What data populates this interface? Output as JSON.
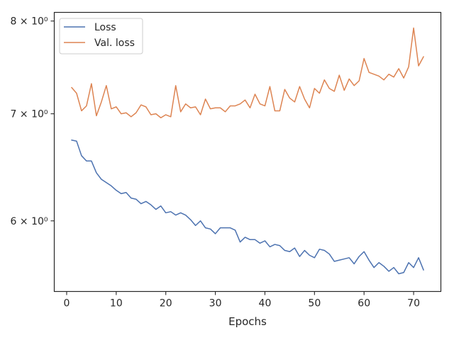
{
  "chart_data": {
    "type": "line",
    "title": "",
    "xlabel": "Epochs",
    "ylabel": "",
    "yscale": "log",
    "xlim": [
      -2.5,
      75.5
    ],
    "ylim": [
      5.42,
      8.1
    ],
    "grid": false,
    "legend_position": "top-left",
    "x_ticks": [
      0,
      10,
      20,
      30,
      40,
      50,
      60,
      70
    ],
    "x_tick_labels": [
      "0",
      "10",
      "20",
      "30",
      "40",
      "50",
      "60",
      "70"
    ],
    "y_ticks": [
      6,
      7,
      8
    ],
    "y_tick_labels": [
      "6 × 10⁰",
      "7 × 10⁰",
      "8 × 10⁰"
    ],
    "x": [
      1,
      2,
      3,
      4,
      5,
      6,
      7,
      8,
      9,
      10,
      11,
      12,
      13,
      14,
      15,
      16,
      17,
      18,
      19,
      20,
      21,
      22,
      23,
      24,
      25,
      26,
      27,
      28,
      29,
      30,
      31,
      32,
      33,
      34,
      35,
      36,
      37,
      38,
      39,
      40,
      41,
      42,
      43,
      44,
      45,
      46,
      47,
      48,
      49,
      50,
      51,
      52,
      53,
      54,
      55,
      56,
      57,
      58,
      59,
      60,
      61,
      62,
      63,
      64,
      65,
      66,
      67,
      68,
      69,
      70,
      71,
      72
    ],
    "series": [
      {
        "name": "Loss",
        "color": "#4c72b0",
        "values": [
          6.74,
          6.73,
          6.59,
          6.54,
          6.54,
          6.43,
          6.37,
          6.34,
          6.31,
          6.27,
          6.24,
          6.25,
          6.2,
          6.19,
          6.15,
          6.17,
          6.14,
          6.1,
          6.13,
          6.07,
          6.08,
          6.05,
          6.07,
          6.05,
          6.01,
          5.96,
          6.0,
          5.94,
          5.93,
          5.89,
          5.94,
          5.94,
          5.94,
          5.92,
          5.82,
          5.86,
          5.84,
          5.84,
          5.81,
          5.83,
          5.78,
          5.8,
          5.79,
          5.75,
          5.74,
          5.77,
          5.7,
          5.75,
          5.71,
          5.69,
          5.76,
          5.75,
          5.72,
          5.66,
          5.67,
          5.68,
          5.69,
          5.64,
          5.7,
          5.74,
          5.67,
          5.61,
          5.65,
          5.62,
          5.58,
          5.61,
          5.56,
          5.57,
          5.65,
          5.61,
          5.69,
          5.59
        ]
      },
      {
        "name": "Val. loss",
        "color": "#dd8452",
        "values": [
          7.27,
          7.21,
          7.03,
          7.08,
          7.31,
          6.98,
          7.12,
          7.29,
          7.05,
          7.07,
          7.0,
          7.01,
          6.97,
          7.01,
          7.09,
          7.07,
          6.99,
          7.0,
          6.96,
          6.99,
          6.97,
          7.29,
          7.02,
          7.1,
          7.06,
          7.07,
          6.99,
          7.15,
          7.05,
          7.06,
          7.06,
          7.02,
          7.08,
          7.08,
          7.1,
          7.14,
          7.06,
          7.2,
          7.1,
          7.08,
          7.28,
          7.03,
          7.03,
          7.25,
          7.16,
          7.12,
          7.28,
          7.15,
          7.06,
          7.26,
          7.21,
          7.35,
          7.26,
          7.23,
          7.4,
          7.24,
          7.36,
          7.29,
          7.34,
          7.58,
          7.43,
          7.41,
          7.39,
          7.35,
          7.41,
          7.38,
          7.47,
          7.37,
          7.49,
          7.92,
          7.5,
          7.6
        ]
      }
    ]
  }
}
